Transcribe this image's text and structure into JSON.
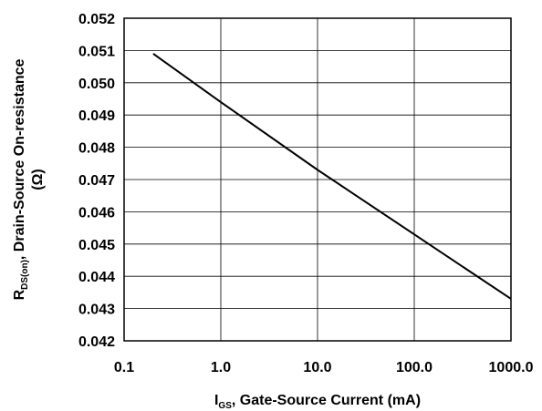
{
  "chart_data": {
    "type": "line",
    "x_scale": "log",
    "xlim": [
      0.1,
      1000.0
    ],
    "ylim": [
      0.042,
      0.052
    ],
    "grid": true,
    "x_ticks": [
      "0.1",
      "1.0",
      "10.0",
      "100.0",
      "1000.0"
    ],
    "y_ticks": [
      "0.042",
      "0.043",
      "0.044",
      "0.045",
      "0.046",
      "0.047",
      "0.048",
      "0.049",
      "0.050",
      "0.051",
      "0.052"
    ],
    "xlabel": {
      "main": "I",
      "sub": "GS",
      "rest": ", Gate-Source Current (mA)"
    },
    "ylabel": {
      "line1_main": "R",
      "line1_sub": "DS(on)",
      "line1_rest": ", Drain-Source On-resistance",
      "line2": "(Ω)"
    },
    "series": [
      {
        "x": [
          0.2,
          1.0,
          10.0,
          100.0,
          1000.0
        ],
        "y": [
          0.0509,
          0.0494,
          0.0473,
          0.0453,
          0.0433
        ]
      }
    ]
  }
}
